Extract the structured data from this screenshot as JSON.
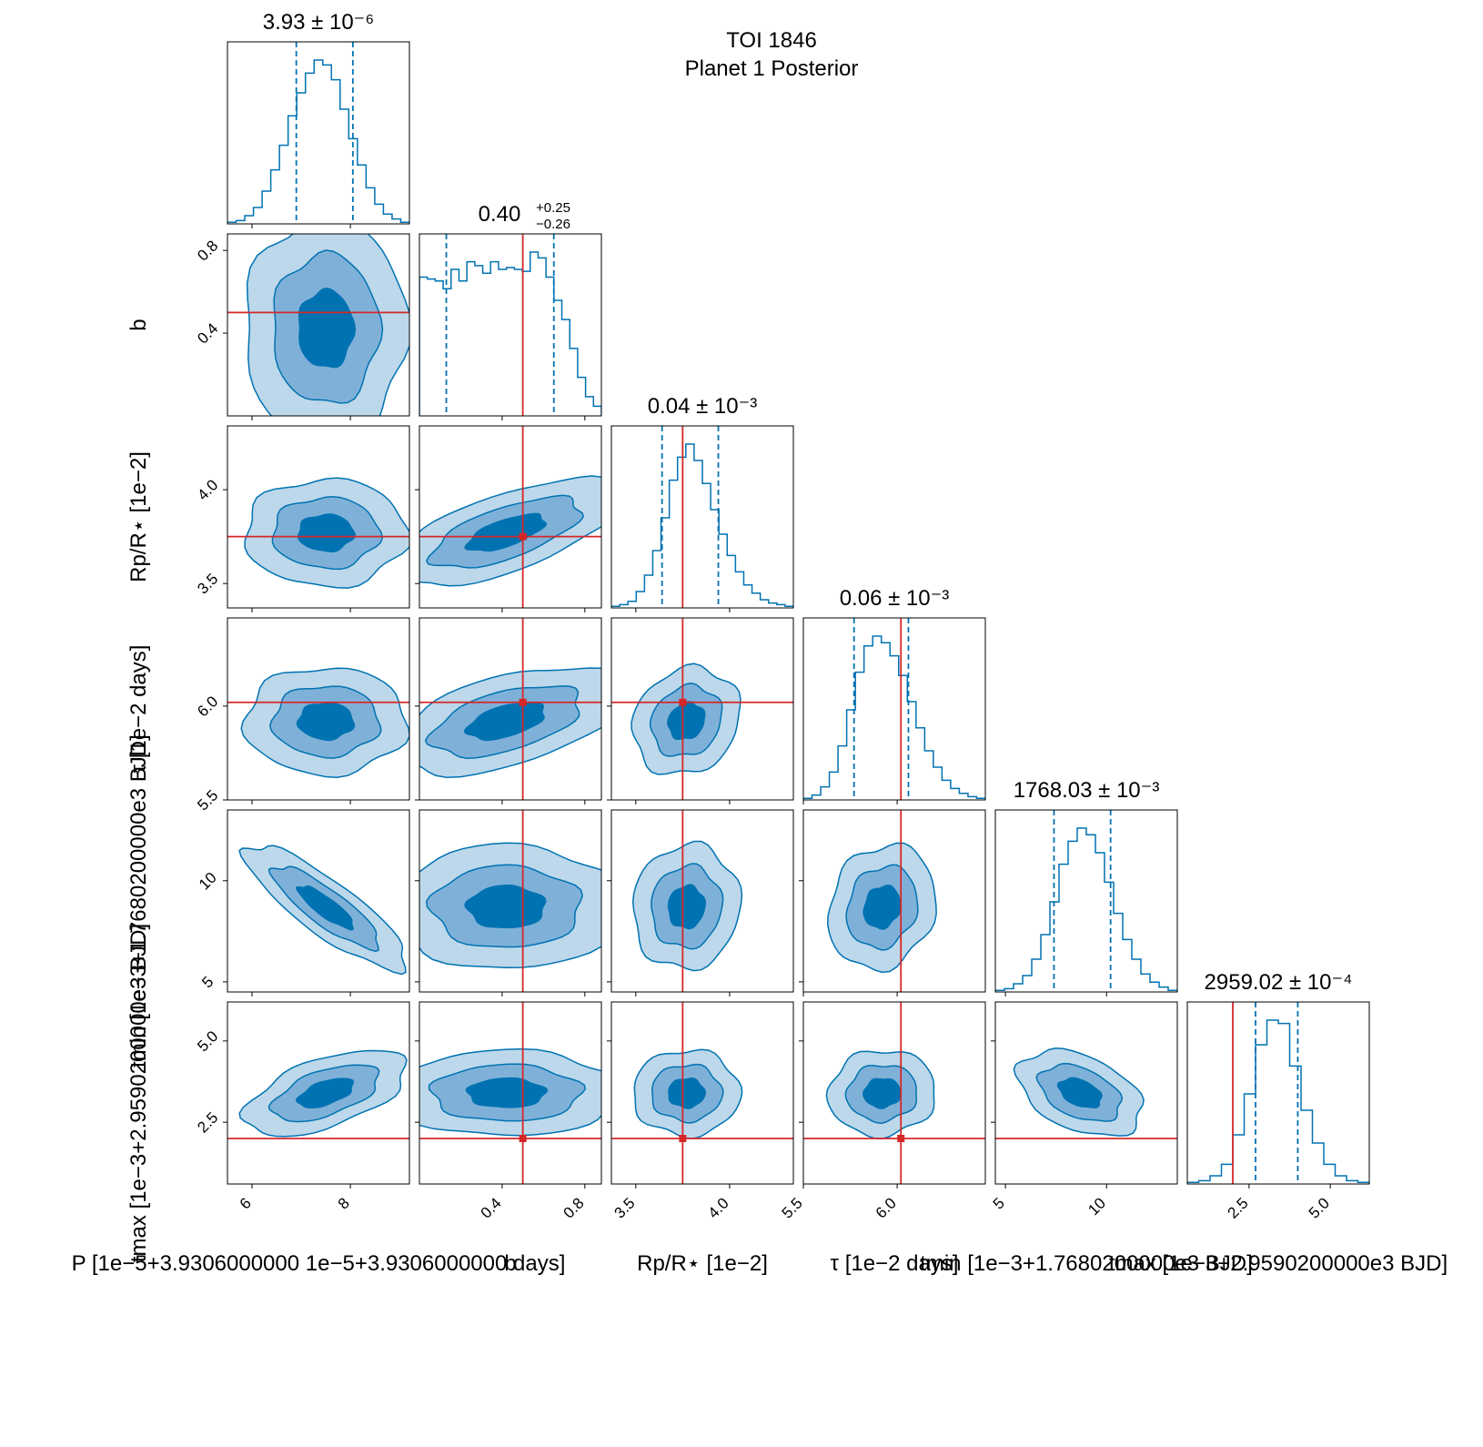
{
  "chart_data": {
    "type": "corner",
    "title": "TOI 1846",
    "subtitle": "Planet 1 Posterior",
    "colors": {
      "posterior": "#0072b2",
      "truth": "#d62728"
    },
    "contour_fills": [
      "#bcd8ea",
      "#7fb1d8",
      "#0072b2"
    ],
    "parameters": [
      {
        "key": "P",
        "label": "P [1e−5+3.9306000000 1e−5+3.9306000000   days]",
        "title": "3.93 ± 10⁻⁶",
        "range": [
          5.5,
          9.2
        ],
        "ticks": [
          6,
          8
        ],
        "tick_labels": [
          "6",
          "8"
        ],
        "center": 7.5,
        "spread": 0.75,
        "q": [
          6.9,
          8.05
        ],
        "truth": null,
        "hist": [
          0.01,
          0.02,
          0.05,
          0.1,
          0.2,
          0.33,
          0.48,
          0.66,
          0.8,
          0.92,
          1.0,
          0.97,
          0.88,
          0.7,
          0.52,
          0.36,
          0.22,
          0.12,
          0.06,
          0.03,
          0.01
        ]
      },
      {
        "key": "b",
        "label": "b",
        "title": "0.40⁺⁰·²⁵₋₀.₂₆",
        "title_main": "0.40",
        "title_sup": "+0.25",
        "title_sub": "−0.26",
        "range": [
          0.0,
          0.88
        ],
        "ticks": [
          0.4,
          0.8
        ],
        "tick_labels": [
          "0.4",
          "0.8"
        ],
        "center": 0.42,
        "spread": 0.25,
        "q": [
          0.13,
          0.65
        ],
        "truth": 0.5,
        "hist": [
          0.72,
          0.71,
          0.7,
          0.66,
          0.76,
          0.7,
          0.8,
          0.78,
          0.74,
          0.8,
          0.76,
          0.77,
          0.76,
          0.75,
          0.85,
          0.82,
          0.72,
          0.6,
          0.5,
          0.35,
          0.2,
          0.1,
          0.05
        ]
      },
      {
        "key": "rp",
        "label": "Rp/R⋆ [1e−2]",
        "title": "0.04 ± 10⁻³",
        "range": [
          3.37,
          4.34
        ],
        "ticks": [
          3.5,
          4.0
        ],
        "tick_labels": [
          "3.5",
          "4.0"
        ],
        "center": 3.77,
        "spread": 0.13,
        "q": [
          3.64,
          3.94
        ],
        "truth": 3.75,
        "hist": [
          0.01,
          0.02,
          0.04,
          0.1,
          0.2,
          0.35,
          0.55,
          0.78,
          0.92,
          1.0,
          0.9,
          0.76,
          0.6,
          0.45,
          0.32,
          0.22,
          0.14,
          0.09,
          0.05,
          0.03,
          0.02,
          0.01
        ]
      },
      {
        "key": "tau",
        "label": "τ [1e−2 days]",
        "title": "0.06 ± 10⁻³",
        "range": [
          5.5,
          6.47
        ],
        "ticks": [
          5.5,
          6.0
        ],
        "tick_labels": [
          "5.5",
          "6.0"
        ],
        "center": 5.92,
        "spread": 0.13,
        "q": [
          5.77,
          6.06
        ],
        "truth": 6.02,
        "hist": [
          0.01,
          0.03,
          0.08,
          0.17,
          0.33,
          0.55,
          0.78,
          0.94,
          1.0,
          0.96,
          0.88,
          0.76,
          0.6,
          0.44,
          0.3,
          0.2,
          0.12,
          0.07,
          0.04,
          0.02,
          0.01
        ]
      },
      {
        "key": "tmin",
        "label": "tmin [1e−3+1.7680200000e3 BJD]",
        "title": "1768.03 ± 10⁻³",
        "range": [
          4.5,
          13.5
        ],
        "ticks": [
          5,
          10
        ],
        "tick_labels": [
          "5",
          "10"
        ],
        "center": 8.7,
        "spread": 1.4,
        "q": [
          7.4,
          10.2
        ],
        "truth": null,
        "hist": [
          0.01,
          0.02,
          0.05,
          0.1,
          0.2,
          0.35,
          0.55,
          0.78,
          0.92,
          1.0,
          0.96,
          0.85,
          0.67,
          0.48,
          0.32,
          0.2,
          0.11,
          0.06,
          0.03,
          0.01
        ]
      },
      {
        "key": "tmax",
        "label": "tmax [1e−3+2.9590200000e3 BJD]",
        "title": "2959.02 ± 10⁻⁴",
        "range": [
          0.6,
          6.2
        ],
        "ticks": [
          2.5,
          5.0
        ],
        "tick_labels": [
          "2.5",
          "5.0"
        ],
        "center": 3.4,
        "spread": 0.6,
        "q": [
          2.7,
          4.0
        ],
        "truth": 2.0,
        "hist": [
          0.01,
          0.02,
          0.05,
          0.12,
          0.3,
          0.55,
          0.85,
          1.0,
          0.98,
          0.72,
          0.45,
          0.25,
          0.12,
          0.05,
          0.02,
          0.01
        ]
      }
    ],
    "pair_correlations": {
      "1-0": 0.0,
      "2-0": 0.0,
      "2-1": 0.65,
      "3-0": 0.0,
      "3-1": 0.5,
      "3-2": 0.15,
      "4-0": -0.85,
      "4-1": 0.0,
      "4-2": 0.05,
      "4-3": 0.15,
      "5-0": 0.55,
      "5-1": 0.0,
      "5-2": 0.0,
      "5-3": 0.05,
      "5-4": -0.4
    },
    "y_axis_labels_left": [
      "b",
      "Rp/R⋆ [1e−2]",
      "τ [1e−2 days]",
      "tmin [1e−3+1.7680200000e3 BJD]",
      "tmax [1e−3+2.9590200000e3 BJD]"
    ],
    "legend": "none",
    "grid": false
  }
}
